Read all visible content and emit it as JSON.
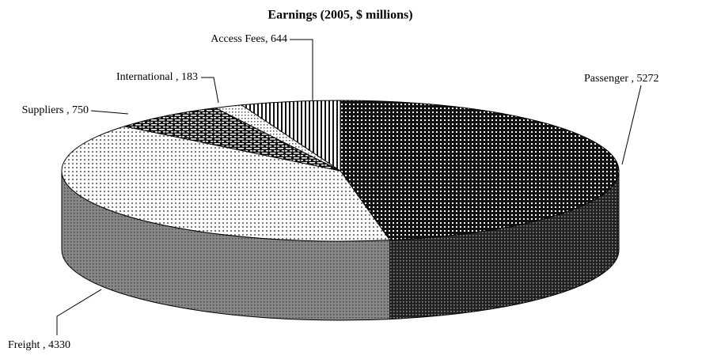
{
  "chart_data": {
    "type": "pie",
    "title": "Earnings (2005, $ millions)",
    "labels": [
      "Passenger , 5272",
      "Freight , 4330",
      "Suppliers , 750",
      "International , 183",
      "Access Fees, 644"
    ],
    "values": [
      5272,
      4330,
      750,
      183,
      644
    ]
  }
}
